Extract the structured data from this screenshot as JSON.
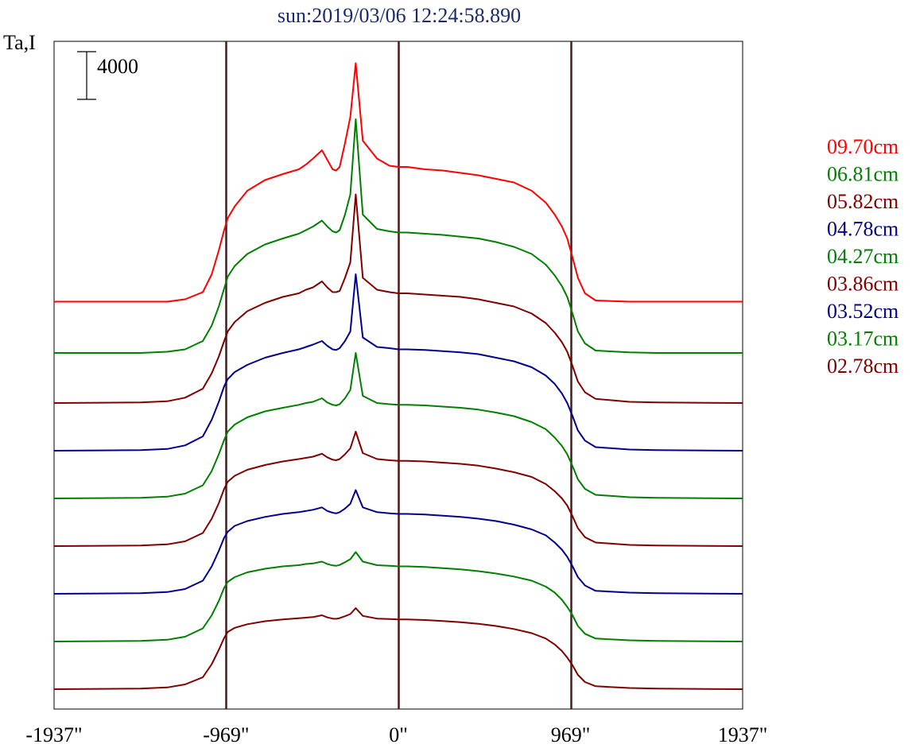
{
  "chart_data": {
    "type": "line",
    "title": "sun:2019/03/06 12:24:58.890",
    "ylabel": "Ta,I",
    "xlabel": "",
    "xlim": [
      -1937,
      1937
    ],
    "x_ticks": [
      {
        "value": -1937,
        "label": "-1937\""
      },
      {
        "value": -969,
        "label": "-969\""
      },
      {
        "value": 0,
        "label": "0\""
      },
      {
        "value": 969,
        "label": "969\""
      },
      {
        "value": 1937,
        "label": "1937\""
      }
    ],
    "vertical_lines": [
      -969,
      0,
      969
    ],
    "scale_bar": {
      "label": "4000",
      "value": 4000
    },
    "grid": false,
    "legend_position": "right",
    "stacked_offsets": true,
    "offset_step": 4000,
    "x": [
      -1937,
      -1450,
      -1300,
      -1200,
      -1100,
      -1050,
      -1010,
      -980,
      -960,
      -920,
      -850,
      -750,
      -650,
      -560,
      -520,
      -480,
      -430,
      -400,
      -370,
      -350,
      -330,
      -300,
      -270,
      -240,
      -200,
      -120,
      -50,
      0,
      50,
      150,
      250,
      350,
      450,
      550,
      650,
      750,
      830,
      880,
      920,
      950,
      980,
      1010,
      1050,
      1110,
      1300,
      1450,
      1937
    ],
    "series": [
      {
        "name": "09.70cm",
        "color": "#ff0000",
        "values": [
          500,
          500,
          500,
          700,
          1300,
          2800,
          4800,
          6500,
          7500,
          8500,
          9800,
          10700,
          11200,
          11600,
          12000,
          12500,
          13200,
          12400,
          11600,
          11500,
          11800,
          13800,
          16000,
          20500,
          14000,
          12500,
          11900,
          11800,
          11800,
          11600,
          11500,
          11300,
          11100,
          10800,
          10500,
          9800,
          8800,
          7800,
          6800,
          5800,
          4200,
          2500,
          1200,
          600,
          500,
          500,
          500
        ]
      },
      {
        "name": "06.81cm",
        "color": "#008000",
        "values": [
          200,
          200,
          300,
          500,
          1200,
          2500,
          4100,
          5600,
          6600,
          7500,
          8500,
          9300,
          9800,
          10200,
          10500,
          10800,
          11300,
          10800,
          10400,
          10300,
          10500,
          11800,
          13500,
          19800,
          11800,
          10600,
          10400,
          10300,
          10300,
          10200,
          10100,
          9950,
          9800,
          9500,
          9100,
          8500,
          7600,
          6700,
          5800,
          4900,
          3500,
          2000,
          1000,
          400,
          250,
          200,
          200
        ]
      },
      {
        "name": "05.82cm",
        "color": "#800000",
        "values": [
          0,
          50,
          150,
          450,
          1200,
          2500,
          3900,
          5200,
          6000,
          6800,
          7700,
          8400,
          8900,
          9200,
          9500,
          9700,
          10200,
          9700,
          9300,
          9300,
          9400,
          10500,
          11800,
          17500,
          10500,
          9500,
          9300,
          9200,
          9200,
          9100,
          9000,
          8900,
          8700,
          8400,
          8100,
          7500,
          6700,
          5900,
          5100,
          4300,
          3100,
          1800,
          900,
          350,
          100,
          50,
          0
        ]
      },
      {
        "name": "04.78cm",
        "color": "#00008b",
        "values": [
          0,
          50,
          150,
          450,
          1200,
          2600,
          4100,
          5400,
          6000,
          6600,
          7200,
          7800,
          8200,
          8500,
          8700,
          8900,
          9200,
          8800,
          8500,
          8450,
          8600,
          9200,
          10000,
          14800,
          9500,
          8700,
          8600,
          8500,
          8500,
          8450,
          8350,
          8250,
          8100,
          7800,
          7500,
          7000,
          6300,
          5600,
          4800,
          4000,
          2900,
          1700,
          850,
          300,
          100,
          50,
          0
        ]
      },
      {
        "name": "04.27cm",
        "color": "#008000",
        "values": [
          0,
          50,
          150,
          400,
          1100,
          2300,
          3700,
          4900,
          5600,
          6200,
          6800,
          7300,
          7600,
          7850,
          8000,
          8100,
          8400,
          8050,
          7850,
          7800,
          7900,
          8400,
          9100,
          12200,
          8600,
          8000,
          7900,
          7850,
          7850,
          7800,
          7700,
          7600,
          7450,
          7200,
          6900,
          6400,
          5800,
          5100,
          4400,
          3700,
          2700,
          1600,
          800,
          300,
          100,
          50,
          0
        ]
      },
      {
        "name": "03.86cm",
        "color": "#800000",
        "values": [
          0,
          50,
          150,
          400,
          1100,
          2300,
          3600,
          4800,
          5400,
          5900,
          6400,
          6800,
          7100,
          7300,
          7400,
          7500,
          7750,
          7450,
          7250,
          7200,
          7300,
          7700,
          8200,
          9600,
          7800,
          7300,
          7200,
          7150,
          7150,
          7100,
          7000,
          6900,
          6750,
          6500,
          6200,
          5800,
          5200,
          4600,
          4000,
          3400,
          2500,
          1500,
          750,
          300,
          100,
          50,
          0
        ]
      },
      {
        "name": "03.52cm",
        "color": "#00008b",
        "values": [
          0,
          50,
          150,
          400,
          1100,
          2300,
          3600,
          4700,
          5200,
          5700,
          6100,
          6450,
          6700,
          6850,
          6950,
          7050,
          7250,
          6950,
          6800,
          6750,
          6850,
          7150,
          7550,
          8700,
          7250,
          6850,
          6750,
          6700,
          6700,
          6650,
          6550,
          6450,
          6300,
          6100,
          5800,
          5400,
          4900,
          4300,
          3700,
          3100,
          2300,
          1400,
          700,
          250,
          100,
          50,
          0
        ]
      },
      {
        "name": "03.17cm",
        "color": "#008000",
        "values": [
          0,
          50,
          150,
          400,
          1100,
          2200,
          3400,
          4500,
          5000,
          5400,
          5800,
          6100,
          6300,
          6400,
          6500,
          6550,
          6700,
          6500,
          6380,
          6350,
          6420,
          6650,
          6900,
          7500,
          6700,
          6400,
          6350,
          6300,
          6300,
          6250,
          6150,
          6050,
          5900,
          5700,
          5450,
          5100,
          4600,
          4100,
          3500,
          2900,
          2200,
          1300,
          650,
          250,
          100,
          50,
          0
        ]
      },
      {
        "name": "02.78cm",
        "color": "#800000",
        "values": [
          0,
          50,
          150,
          400,
          1000,
          2100,
          3300,
          4300,
          4800,
          5150,
          5450,
          5700,
          5850,
          5950,
          6000,
          6050,
          6200,
          6020,
          5920,
          5900,
          5960,
          6120,
          6300,
          6800,
          6150,
          5920,
          5880,
          5850,
          5850,
          5800,
          5720,
          5620,
          5480,
          5300,
          5050,
          4700,
          4250,
          3750,
          3200,
          2650,
          2000,
          1200,
          600,
          250,
          100,
          50,
          0
        ]
      }
    ]
  }
}
